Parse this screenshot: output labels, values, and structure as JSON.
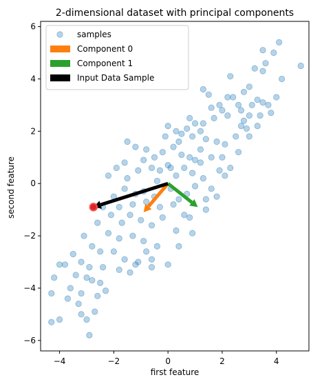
{
  "chart_data": {
    "type": "scatter",
    "title": "2-dimensional dataset with principal components",
    "xlabel": "first feature",
    "ylabel": "second feature",
    "xlim": [
      -4.7,
      5.2
    ],
    "ylim": [
      -6.4,
      6.2
    ],
    "x_ticks": [
      -4,
      -2,
      0,
      2,
      4
    ],
    "y_ticks": [
      -6,
      -4,
      -2,
      0,
      2,
      4,
      6
    ],
    "x_tick_labels": [
      "−4",
      "−2",
      "0",
      "2",
      "4"
    ],
    "y_tick_labels": [
      "−6",
      "−4",
      "−2",
      "0",
      "2",
      "4",
      "6"
    ],
    "grid": false,
    "legend": {
      "location": "top-left",
      "entries": [
        {
          "label": "samples",
          "marker": "circle",
          "color": "#1f77b4"
        },
        {
          "label": "Component 0",
          "marker": "rect",
          "color": "#ff7f0e"
        },
        {
          "label": "Component 1",
          "marker": "rect",
          "color": "#2ca02c"
        },
        {
          "label": "Input Data Sample",
          "marker": "rect",
          "color": "#000000"
        }
      ]
    },
    "colors": {
      "samples": "#1f77b4",
      "component_0": "#ff7f0e",
      "component_1": "#2ca02c",
      "input_sample": "#000000",
      "highlight_point": "#d62728"
    },
    "series": [
      {
        "name": "samples",
        "kind": "scatter",
        "points": [
          [
            4.9,
            4.5
          ],
          [
            4.2,
            4.0
          ],
          [
            4.1,
            5.4
          ],
          [
            3.9,
            5.0
          ],
          [
            3.6,
            4.6
          ],
          [
            3.5,
            4.3
          ],
          [
            3.5,
            5.1
          ],
          [
            3.2,
            4.4
          ],
          [
            3.0,
            3.7
          ],
          [
            2.8,
            3.5
          ],
          [
            2.3,
            4.1
          ],
          [
            2.2,
            3.3
          ],
          [
            3.5,
            3.1
          ],
          [
            3.3,
            3.2
          ],
          [
            3.1,
            3.0
          ],
          [
            3.0,
            2.6
          ],
          [
            2.8,
            2.4
          ],
          [
            2.7,
            2.8
          ],
          [
            2.6,
            3.0
          ],
          [
            2.4,
            3.3
          ],
          [
            2.2,
            2.6
          ],
          [
            2.0,
            2.8
          ],
          [
            1.9,
            3.0
          ],
          [
            1.7,
            2.5
          ],
          [
            1.6,
            2.9
          ],
          [
            1.5,
            3.4
          ],
          [
            1.3,
            3.6
          ],
          [
            1.3,
            2.3
          ],
          [
            1.2,
            2.0
          ],
          [
            1.0,
            2.3
          ],
          [
            0.8,
            2.5
          ],
          [
            0.7,
            2.1
          ],
          [
            0.5,
            1.9
          ],
          [
            0.3,
            2.0
          ],
          [
            0.0,
            2.2
          ],
          [
            0.4,
            1.6
          ],
          [
            0.9,
            1.8
          ],
          [
            1.4,
            1.7
          ],
          [
            1.8,
            1.6
          ],
          [
            2.1,
            1.5
          ],
          [
            2.5,
            1.8
          ],
          [
            2.9,
            2.1
          ],
          [
            3.4,
            2.6
          ],
          [
            3.8,
            2.7
          ],
          [
            1.6,
            1.0
          ],
          [
            1.9,
            0.5
          ],
          [
            2.0,
            1.0
          ],
          [
            1.2,
            0.8
          ],
          [
            0.8,
            1.0
          ],
          [
            0.5,
            1.1
          ],
          [
            0.2,
            1.4
          ],
          [
            -0.2,
            1.2
          ],
          [
            -0.5,
            1.0
          ],
          [
            -0.8,
            1.3
          ],
          [
            -1.2,
            1.4
          ],
          [
            -1.5,
            1.6
          ],
          [
            -0.6,
            0.6
          ],
          [
            -0.3,
            0.5
          ],
          [
            0.0,
            0.7
          ],
          [
            0.3,
            0.3
          ],
          [
            0.6,
            0.6
          ],
          [
            0.9,
            0.4
          ],
          [
            1.3,
            0.2
          ],
          [
            1.6,
            -0.2
          ],
          [
            2.1,
            0.3
          ],
          [
            -1.6,
            0.8
          ],
          [
            -1.9,
            0.6
          ],
          [
            -2.2,
            0.3
          ],
          [
            -1.5,
            0.2
          ],
          [
            -1.1,
            0.5
          ],
          [
            -0.9,
            -0.3
          ],
          [
            -0.4,
            0.1
          ],
          [
            0.1,
            -0.2
          ],
          [
            0.7,
            -0.4
          ],
          [
            1.0,
            -0.1
          ],
          [
            1.4,
            -0.6
          ],
          [
            -2.0,
            -0.5
          ],
          [
            -1.6,
            -0.2
          ],
          [
            -1.3,
            -0.8
          ],
          [
            -0.8,
            -0.7
          ],
          [
            -0.3,
            -0.9
          ],
          [
            0.2,
            -0.8
          ],
          [
            0.6,
            -1.2
          ],
          [
            -2.4,
            -0.9
          ],
          [
            -2.1,
            -1.2
          ],
          [
            -1.7,
            -1.5
          ],
          [
            -1.4,
            -1.2
          ],
          [
            -1.0,
            -1.4
          ],
          [
            -0.6,
            -1.6
          ],
          [
            -0.2,
            -1.3
          ],
          [
            0.3,
            -1.8
          ],
          [
            -2.6,
            -1.5
          ],
          [
            -2.2,
            -1.9
          ],
          [
            -1.8,
            -2.1
          ],
          [
            -1.3,
            -2.0
          ],
          [
            -0.9,
            -2.2
          ],
          [
            -0.4,
            -2.4
          ],
          [
            -3.1,
            -2.0
          ],
          [
            -2.8,
            -2.4
          ],
          [
            -2.5,
            -2.6
          ],
          [
            -2.0,
            -2.6
          ],
          [
            -1.6,
            -2.9
          ],
          [
            -1.1,
            -3.0
          ],
          [
            -0.6,
            -2.9
          ],
          [
            -3.5,
            -2.7
          ],
          [
            -3.2,
            -3.0
          ],
          [
            -2.9,
            -3.2
          ],
          [
            -2.4,
            -3.2
          ],
          [
            -1.8,
            -3.3
          ],
          [
            -1.2,
            -3.1
          ],
          [
            -0.6,
            -3.2
          ],
          [
            0.0,
            -3.1
          ],
          [
            -3.8,
            -3.1
          ],
          [
            -3.4,
            -3.5
          ],
          [
            -3.0,
            -3.6
          ],
          [
            -2.5,
            -3.8
          ],
          [
            -1.4,
            -3.4
          ],
          [
            -3.6,
            -4.0
          ],
          [
            -3.2,
            -4.2
          ],
          [
            -2.6,
            -4.3
          ],
          [
            -2.3,
            -4.1
          ],
          [
            -4.2,
            -3.6
          ],
          [
            -3.7,
            -4.4
          ],
          [
            -3.3,
            -4.6
          ],
          [
            -3.2,
            -5.0
          ],
          [
            -3.0,
            -5.2
          ],
          [
            -2.7,
            -4.9
          ],
          [
            -4.3,
            -4.2
          ],
          [
            -4.0,
            -5.2
          ],
          [
            -4.3,
            -5.3
          ],
          [
            -2.9,
            -5.8
          ],
          [
            -4.0,
            -3.1
          ],
          [
            -2.8,
            -3.7
          ],
          [
            -0.8,
            -2.6
          ],
          [
            0.4,
            -2.4
          ],
          [
            0.9,
            -1.9
          ],
          [
            1.4,
            -1.0
          ],
          [
            1.8,
            -0.5
          ],
          [
            2.3,
            0.6
          ],
          [
            2.6,
            1.2
          ],
          [
            3.0,
            1.8
          ],
          [
            3.3,
            2.2
          ],
          [
            3.7,
            3.0
          ],
          [
            4.0,
            3.3
          ],
          [
            0.8,
            -1.3
          ],
          [
            1.0,
            0.9
          ],
          [
            -0.1,
            1.8
          ],
          [
            -0.9,
            0.9
          ],
          [
            -1.8,
            -0.9
          ],
          [
            -0.5,
            -0.5
          ],
          [
            0.1,
            0.6
          ],
          [
            0.4,
            -0.6
          ],
          [
            1.2,
            1.3
          ],
          [
            -1.2,
            -0.4
          ],
          [
            2.7,
            2.2
          ]
        ]
      },
      {
        "name": "Component 0",
        "kind": "arrow",
        "start": [
          0.0,
          0.0
        ],
        "end": [
          -0.9,
          -1.1
        ]
      },
      {
        "name": "Component 1",
        "kind": "arrow",
        "start": [
          0.0,
          0.0
        ],
        "end": [
          1.1,
          -0.9
        ]
      },
      {
        "name": "Input Data Sample",
        "kind": "arrow",
        "start": [
          0.0,
          0.0
        ],
        "end": [
          -2.75,
          -0.9
        ]
      },
      {
        "kind": "highlight_point",
        "point": [
          -2.75,
          -0.9
        ]
      }
    ]
  }
}
